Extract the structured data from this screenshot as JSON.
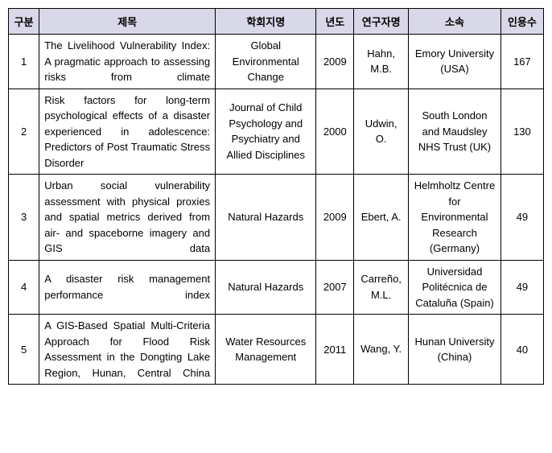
{
  "headers": {
    "col1": "구분",
    "col2": "제목",
    "col3": "학회지명",
    "col4": "년도",
    "col5": "연구자명",
    "col6": "소속",
    "col7": "인용수"
  },
  "rows": [
    {
      "num": "1",
      "title": "The Livelihood Vulnerability Index: A pragmatic approach to assessing risks from climate",
      "journal": "Global Environmental Change",
      "year": "2009",
      "author": "Hahn, M.B.",
      "affil": "Emory University (USA)",
      "cites": "167"
    },
    {
      "num": "2",
      "title": "Risk factors for long-term psychological effects of a disaster experienced in adolescence: Predictors of Post Traumatic Stress Disorder",
      "journal": "Journal of Child Psychology and Psychiatry and Allied Disciplines",
      "year": "2000",
      "author": "Udwin, O.",
      "affil": "South London and Maudsley NHS Trust (UK)",
      "cites": "130"
    },
    {
      "num": "3",
      "title": "Urban social vulnerability assessment with physical proxies and spatial metrics derived from air- and spaceborne imagery and GIS data",
      "journal": "Natural Hazards",
      "year": "2009",
      "author": "Ebert, A.",
      "affil": "Helmholtz Centre for Environmental Research (Germany)",
      "cites": "49"
    },
    {
      "num": "4",
      "title": "A disaster risk management performance index",
      "journal": "Natural Hazards",
      "year": "2007",
      "author": "Carreño, M.L.",
      "affil": "Universidad Politécnica de Cataluña (Spain)",
      "cites": "49"
    },
    {
      "num": "5",
      "title": "A GIS-Based Spatial Multi-Criteria Approach for Flood Risk Assessment in the Dongting Lake Region, Hunan, Central China",
      "journal": "Water Resources Management",
      "year": "2011",
      "author": "Wang, Y.",
      "affil": "Hunan University (China)",
      "cites": "40"
    }
  ]
}
